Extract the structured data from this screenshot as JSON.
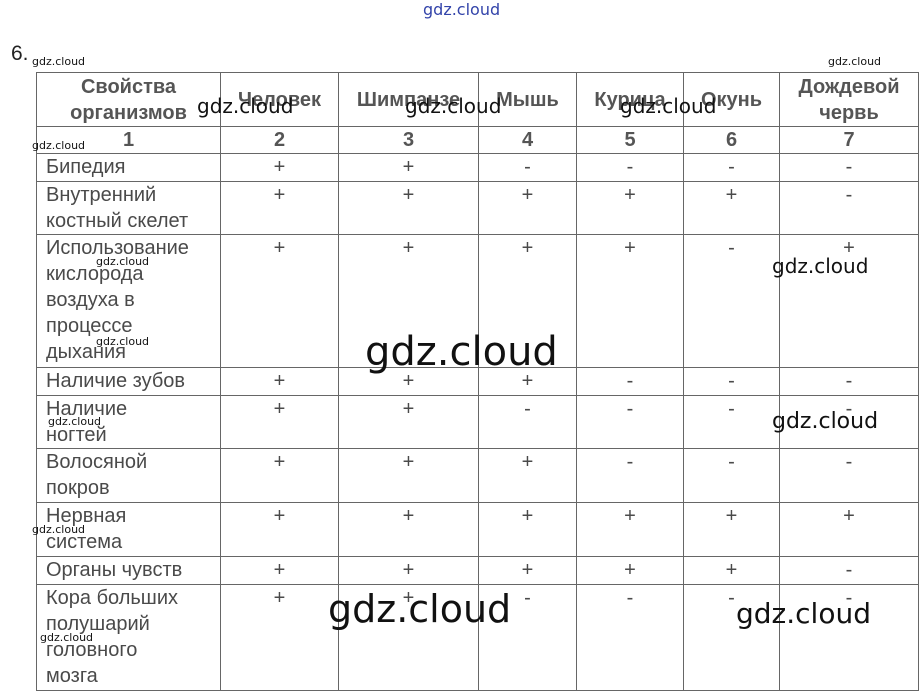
{
  "task_number": "6.",
  "table": {
    "header": [
      "Свойства\nорганизмов",
      "Человек",
      "Шимпанзе",
      "Мышь",
      "Курица",
      "Окунь",
      "Дождевой\nчервь"
    ],
    "numbers": [
      "1",
      "2",
      "3",
      "4",
      "5",
      "6",
      "7"
    ],
    "rows": [
      {
        "label": "Бипедия",
        "values": [
          "+",
          "+",
          "-",
          "-",
          "-",
          "-"
        ]
      },
      {
        "label": "Внутренний\nкостный скелет",
        "values": [
          "+",
          "+",
          "+",
          "+",
          "+",
          "-"
        ]
      },
      {
        "label": "Использование\nкислорода\nвоздуха в\nпроцессе\nдыхания",
        "values": [
          "+",
          "+",
          "+",
          "+",
          "-",
          "+"
        ]
      },
      {
        "label": "Наличие зубов",
        "values": [
          "+",
          "+",
          "+",
          "-",
          "-",
          "-"
        ]
      },
      {
        "label": "Наличие\nногтей",
        "values": [
          "+",
          "+",
          "-",
          "-",
          "-",
          "-"
        ]
      },
      {
        "label": "Волосяной\nпокров",
        "values": [
          "+",
          "+",
          "+",
          "-",
          "-",
          "-"
        ]
      },
      {
        "label": "Нервная\nсистема",
        "values": [
          "+",
          "+",
          "+",
          "+",
          "+",
          "+"
        ]
      },
      {
        "label": "Органы чувств",
        "values": [
          "+",
          "+",
          "+",
          "+",
          "+",
          "-"
        ]
      },
      {
        "label": "Кора больших\nполушарий\nголовного\nмозга",
        "values": [
          "+",
          "+",
          "-",
          "-",
          "-",
          "-"
        ]
      }
    ]
  },
  "watermarks": [
    "gdz.cloud",
    "gdz.cloud",
    "gdz.cloud",
    "gdz.cloud",
    "gdz.cloud",
    "gdz.cloud",
    "gdz.cloud",
    "gdz.cloud",
    "gdz.cloud",
    "gdz.cloud",
    "gdz.cloud",
    "gdz.cloud",
    "gdz.cloud",
    "gdz.cloud",
    "gdz.cloud",
    "gdz.cloud",
    "gdz.cloud"
  ]
}
